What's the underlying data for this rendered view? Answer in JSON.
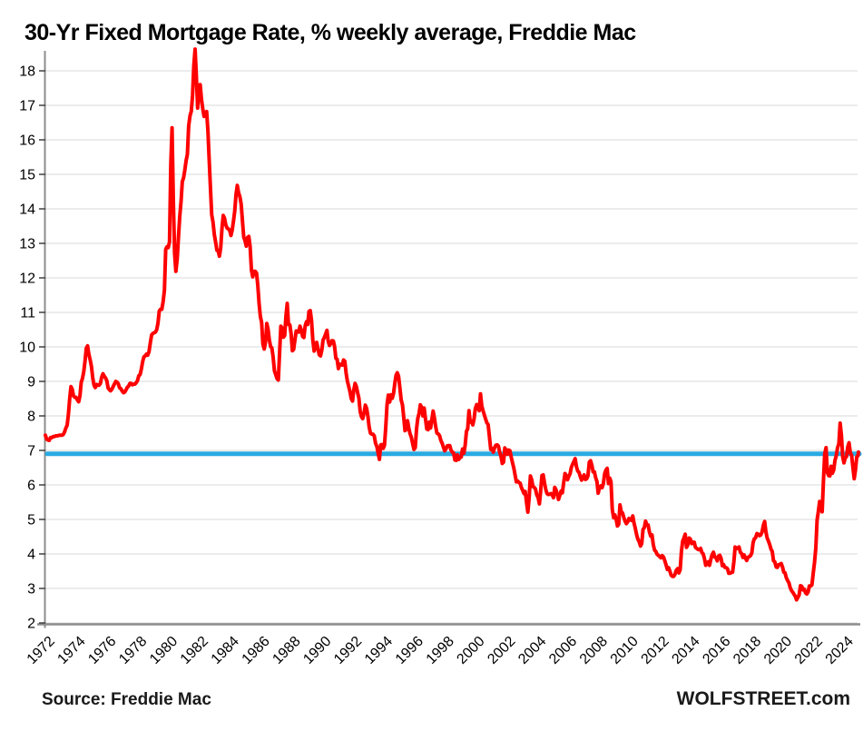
{
  "header": {
    "title": "30-Yr Fixed Mortgage Rate, % weekly average, Freddie Mac"
  },
  "footer": {
    "source": "Source: Freddie Mac",
    "branding": "WOLFSTREET.com"
  },
  "colors": {
    "rate_line": "#FF0000",
    "reference_line": "#29ABE2",
    "grid": "#D9D9D9",
    "axis": "#8C8C8C",
    "tick_mark": "#404040",
    "text": "#000000",
    "background": "#FFFFFF"
  },
  "chart_data": {
    "type": "line",
    "title": "30-Yr Fixed Mortgage Rate, % weekly average, Freddie Mac",
    "xlabel": "",
    "ylabel": "",
    "grid": "horizontal",
    "legend": "none",
    "xlim": [
      1972,
      2025
    ],
    "ylim": [
      2,
      18.8
    ],
    "y_ticks": [
      2,
      3,
      4,
      5,
      6,
      7,
      8,
      9,
      10,
      11,
      12,
      13,
      14,
      15,
      16,
      17,
      18
    ],
    "x_tick_labels": [
      "1972",
      "1974",
      "1976",
      "1978",
      "1980",
      "1982",
      "1984",
      "1986",
      "1988",
      "1990",
      "1992",
      "1994",
      "1996",
      "1998",
      "2000",
      "2002",
      "2004",
      "2006",
      "2008",
      "2010",
      "2012",
      "2014",
      "2016",
      "2018",
      "2020",
      "2022",
      "2024"
    ],
    "reference_line_value": 6.9,
    "series": [
      {
        "name": "30-yr fixed mortgage rate, % weekly average",
        "x_start_year": 1972,
        "x_step_months": 1,
        "values": [
          7.44,
          7.33,
          7.3,
          7.29,
          7.37,
          7.37,
          7.4,
          7.4,
          7.42,
          7.42,
          7.43,
          7.44,
          7.44,
          7.44,
          7.46,
          7.54,
          7.65,
          7.73,
          8.05,
          8.5,
          8.85,
          8.77,
          8.58,
          8.54,
          8.54,
          8.46,
          8.41,
          8.58,
          8.97,
          9.09,
          9.28,
          9.59,
          9.96,
          10.03,
          9.79,
          9.62,
          9.43,
          9.1,
          8.89,
          8.82,
          8.91,
          8.89,
          8.89,
          8.94,
          9.13,
          9.22,
          9.15,
          9.1,
          9.02,
          8.81,
          8.76,
          8.73,
          8.77,
          8.85,
          8.93,
          9.0,
          8.98,
          8.93,
          8.81,
          8.79,
          8.72,
          8.67,
          8.69,
          8.75,
          8.83,
          8.86,
          8.94,
          8.94,
          8.9,
          8.92,
          8.92,
          8.96,
          9.02,
          9.16,
          9.2,
          9.36,
          9.57,
          9.71,
          9.74,
          9.79,
          9.76,
          9.86,
          10.11,
          10.35,
          10.39,
          10.41,
          10.43,
          10.5,
          10.69,
          11.04,
          11.09,
          11.09,
          11.3,
          11.64,
          12.83,
          12.9,
          12.88,
          13.04,
          15.28,
          16.35,
          14.26,
          12.71,
          12.19,
          12.56,
          13.2,
          13.79,
          14.21,
          14.79,
          14.9,
          15.13,
          15.4,
          15.58,
          16.4,
          16.7,
          16.83,
          17.29,
          18.16,
          18.63,
          17.83,
          16.92,
          17.4,
          17.6,
          17.16,
          16.89,
          16.68,
          16.7,
          16.82,
          16.27,
          15.43,
          14.61,
          13.83,
          13.62,
          13.25,
          13.04,
          12.8,
          12.78,
          12.63,
          12.87,
          13.43,
          13.81,
          13.73,
          13.54,
          13.44,
          13.42,
          13.37,
          13.23,
          13.39,
          13.65,
          13.94,
          14.42,
          14.68,
          14.47,
          14.35,
          14.13,
          13.64,
          13.18,
          13.08,
          12.92,
          13.17,
          13.2,
          12.91,
          12.22,
          12.03,
          12.19,
          12.19,
          12.14,
          11.78,
          11.26,
          10.88,
          10.71,
          10.08,
          9.94,
          10.14,
          10.68,
          10.51,
          10.2,
          10.01,
          9.97,
          9.7,
          9.31,
          9.2,
          9.08,
          9.04,
          9.83,
          10.6,
          10.54,
          10.28,
          10.33,
          10.89,
          11.26,
          10.65,
          10.64,
          10.38,
          9.89,
          9.93,
          10.2,
          10.46,
          10.46,
          10.43,
          10.6,
          10.48,
          10.3,
          10.27,
          10.61,
          10.73,
          10.65,
          11.03,
          11.05,
          10.77,
          10.2,
          9.88,
          9.99,
          10.13,
          9.95,
          9.77,
          9.74,
          9.9,
          10.2,
          10.27,
          10.37,
          10.48,
          10.16,
          10.04,
          10.1,
          10.18,
          10.17,
          10.01,
          9.67,
          9.64,
          9.37,
          9.5,
          9.49,
          9.47,
          9.62,
          9.58,
          9.24,
          9.01,
          8.86,
          8.71,
          8.5,
          8.43,
          8.76,
          8.94,
          8.85,
          8.67,
          8.51,
          8.13,
          7.98,
          7.92,
          8.09,
          8.31,
          8.22,
          7.99,
          7.68,
          7.5,
          7.47,
          7.47,
          7.42,
          7.21,
          7.11,
          6.92,
          6.74,
          7.16,
          7.17,
          7.06,
          7.15,
          7.68,
          8.32,
          8.6,
          8.4,
          8.61,
          8.51,
          8.64,
          8.93,
          9.17,
          9.25,
          9.15,
          8.83,
          8.46,
          8.32,
          7.96,
          7.57,
          7.61,
          7.86,
          7.64,
          7.48,
          7.38,
          7.2,
          7.03,
          7.08,
          7.62,
          7.93,
          8.07,
          8.32,
          8.25,
          8.0,
          8.23,
          7.92,
          7.62,
          7.6,
          7.82,
          7.65,
          7.9,
          8.14,
          7.94,
          7.69,
          7.5,
          7.48,
          7.43,
          7.29,
          7.21,
          7.1,
          6.99,
          7.04,
          7.13,
          7.14,
          7.14,
          7.0,
          6.95,
          6.92,
          6.72,
          6.71,
          6.87,
          6.74,
          6.79,
          6.81,
          7.04,
          6.92,
          7.15,
          7.55,
          7.63,
          8.15,
          7.82,
          7.85,
          7.74,
          7.91,
          8.21,
          8.33,
          8.24,
          8.15,
          8.64,
          8.29,
          8.15,
          8.03,
          7.91,
          7.8,
          7.75,
          7.38,
          7.03,
          7.05,
          6.95,
          7.08,
          7.15,
          7.16,
          7.13,
          6.95,
          6.82,
          6.62,
          6.66,
          7.07,
          7.0,
          6.89,
          7.01,
          6.99,
          6.81,
          6.65,
          6.49,
          6.29,
          6.09,
          6.11,
          6.07,
          6.05,
          5.92,
          5.84,
          5.75,
          5.81,
          5.48,
          5.21,
          5.63,
          6.26,
          6.15,
          5.95,
          5.93,
          5.88,
          5.71,
          5.64,
          5.45,
          5.83,
          6.27,
          6.29,
          6.06,
          5.87,
          5.75,
          5.72,
          5.73,
          5.75,
          5.71,
          5.63,
          5.93,
          5.86,
          5.72,
          5.58,
          5.7,
          5.82,
          5.77,
          6.07,
          6.33,
          6.27,
          6.15,
          6.25,
          6.32,
          6.51,
          6.6,
          6.68,
          6.76,
          6.52,
          6.4,
          6.36,
          6.24,
          6.14,
          6.22,
          6.29,
          6.16,
          6.18,
          6.26,
          6.66,
          6.7,
          6.57,
          6.38,
          6.38,
          6.21,
          6.1,
          5.76,
          5.92,
          5.97,
          5.92,
          6.04,
          6.32,
          6.43,
          6.48,
          6.04,
          6.2,
          6.09,
          5.29,
          5.05,
          5.13,
          5.0,
          4.81,
          4.86,
          5.42,
          5.22,
          5.19,
          5.06,
          4.95,
          4.88,
          4.93,
          5.03,
          4.99,
          4.97,
          5.1,
          4.89,
          4.74,
          4.56,
          4.43,
          4.35,
          4.23,
          4.3,
          4.71,
          4.76,
          4.95,
          4.84,
          4.84,
          4.64,
          4.51,
          4.55,
          4.27,
          4.11,
          4.07,
          3.99,
          3.96,
          3.92,
          3.89,
          3.95,
          3.91,
          3.8,
          3.68,
          3.55,
          3.6,
          3.5,
          3.38,
          3.35,
          3.35,
          3.41,
          3.53,
          3.57,
          3.45,
          3.54,
          4.07,
          4.37,
          4.46,
          4.57,
          4.19,
          4.26,
          4.46,
          4.43,
          4.3,
          4.34,
          4.34,
          4.19,
          4.16,
          4.13,
          4.12,
          4.16,
          4.04,
          4.0,
          3.86,
          3.67,
          3.71,
          3.77,
          3.67,
          3.84,
          3.98,
          4.05,
          3.91,
          3.89,
          3.8,
          3.94,
          3.96,
          3.87,
          3.66,
          3.69,
          3.61,
          3.6,
          3.57,
          3.44,
          3.44,
          3.46,
          3.47,
          3.77,
          4.2,
          4.15,
          4.17,
          4.2,
          4.05,
          4.01,
          3.9,
          3.97,
          3.88,
          3.81,
          3.9,
          3.92,
          3.95,
          4.03,
          4.33,
          4.44,
          4.47,
          4.59,
          4.57,
          4.53,
          4.55,
          4.63,
          4.83,
          4.94,
          4.64,
          4.46,
          4.37,
          4.27,
          4.14,
          4.07,
          3.8,
          3.77,
          3.62,
          3.61,
          3.69,
          3.7,
          3.72,
          3.62,
          3.47,
          3.45,
          3.31,
          3.23,
          3.16,
          3.02,
          2.94,
          2.89,
          2.83,
          2.77,
          2.67,
          2.74,
          2.81,
          3.08,
          3.06,
          2.96,
          2.98,
          2.87,
          2.84,
          2.9,
          3.07,
          3.07,
          3.1,
          3.45,
          3.76,
          4.17,
          4.98,
          5.23,
          5.52,
          5.41,
          5.22,
          6.11,
          6.9,
          7.08,
          6.36,
          6.27,
          6.26,
          6.54,
          6.34,
          6.43,
          6.71,
          6.84,
          7.07,
          7.2,
          7.79,
          7.44,
          6.82,
          6.64,
          6.78,
          6.82,
          7.1,
          7.22,
          6.92,
          6.85,
          6.5,
          6.18,
          6.43,
          6.81,
          6.85,
          6.95
        ]
      }
    ]
  }
}
